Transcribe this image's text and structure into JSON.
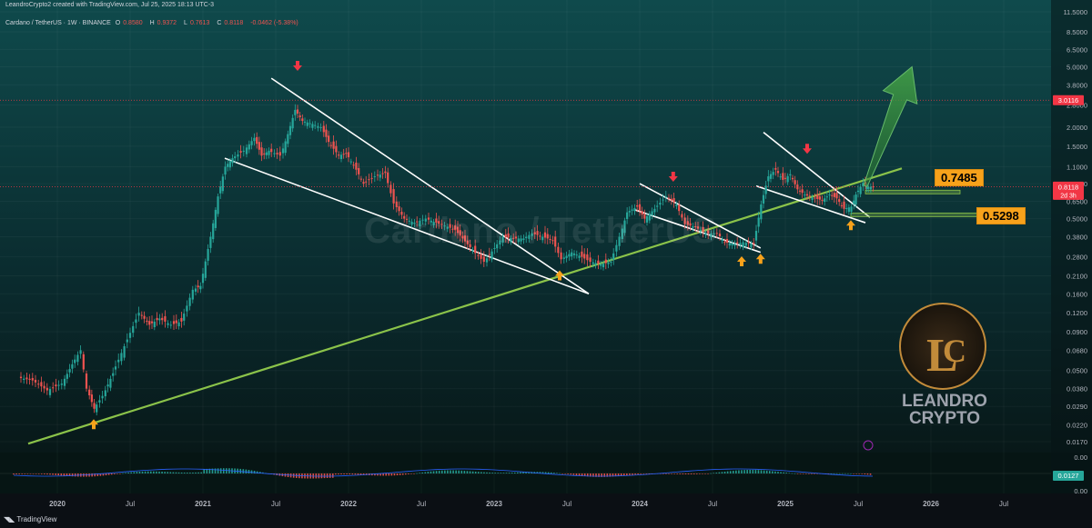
{
  "header": {
    "created": "LeandroCrypto2 created with TradingView.com, Jul 25, 2025 18:13 UTC-3",
    "symbol": "Cardano / TetherUS · 1W · BINANCE",
    "ohlc": {
      "o_label": "O",
      "o": "0.8580",
      "h_label": "H",
      "h": "0.9372",
      "l_label": "L",
      "l": "0.7613",
      "c_label": "C",
      "c": "0.8118",
      "change": "-0.0462 (-5.38%)"
    }
  },
  "watermark": "Cardano / TetherUS",
  "logo": {
    "line1": "LEANDRO",
    "line2": "CRYPTO"
  },
  "footer": {
    "brand": "TradingView"
  },
  "chart_data": {
    "type": "candlestick",
    "symbol": "ADAUSDT",
    "y_scale": "log",
    "price_ticks": [
      "11.5000",
      "8.5000",
      "6.5000",
      "5.0000",
      "3.8000",
      "2.8000",
      "2.0000",
      "1.5000",
      "1.1000",
      "0.8500",
      "0.6500",
      "0.5000",
      "0.3800",
      "0.2800",
      "0.2100",
      "0.1600",
      "0.1200",
      "0.0900",
      "0.0680",
      "0.0500",
      "0.0380",
      "0.0290",
      "0.0220",
      "0.0170"
    ],
    "x_ticks": [
      "2020",
      "Jul",
      "2021",
      "Jul",
      "2022",
      "Jul",
      "2023",
      "Jul",
      "2024",
      "Jul",
      "2025",
      "Jul",
      "2026",
      "Jul"
    ],
    "price_markers": [
      {
        "value": "3.0116",
        "color": "#f23645"
      },
      {
        "value": "0.8118",
        "color": "#f23645",
        "sub": "2d 3h"
      }
    ],
    "levels": [
      {
        "label": "0.7485",
        "value": 0.7485,
        "color": "#f7a21b"
      },
      {
        "label": "0.5298",
        "value": 0.5298,
        "color": "#f7a21b"
      }
    ],
    "trendlines": [
      {
        "name": "long-term support",
        "color": "#8bc34a",
        "from": {
          "t": 2019.8,
          "p": 0.0165
        },
        "to": {
          "t": 2025.8,
          "p": 1.07
        }
      },
      {
        "name": "2021-2023 wedge upper",
        "color": "#ffffff",
        "from": {
          "t": 2021.47,
          "p": 4.2
        },
        "to": {
          "t": 2023.65,
          "p": 0.16
        }
      },
      {
        "name": "2021-2023 wedge lower",
        "color": "#ffffff",
        "from": {
          "t": 2021.15,
          "p": 1.25
        },
        "to": {
          "t": 2023.65,
          "p": 0.16
        }
      },
      {
        "name": "2024 wedge upper",
        "color": "#ffffff",
        "from": {
          "t": 2024.0,
          "p": 0.85
        },
        "to": {
          "t": 2024.83,
          "p": 0.32
        }
      },
      {
        "name": "2024 wedge lower",
        "color": "#ffffff",
        "from": {
          "t": 2023.97,
          "p": 0.57
        },
        "to": {
          "t": 2024.83,
          "p": 0.3
        }
      },
      {
        "name": "2025 wedge upper",
        "color": "#ffffff",
        "from": {
          "t": 2024.85,
          "p": 1.85
        },
        "to": {
          "t": 2025.58,
          "p": 0.51
        }
      },
      {
        "name": "2025 wedge lower",
        "color": "#ffffff",
        "from": {
          "t": 2024.8,
          "p": 0.82
        },
        "to": {
          "t": 2025.55,
          "p": 0.47
        }
      }
    ],
    "arrows_up": [
      2020.25,
      2023.45,
      2024.7,
      2024.83,
      2025.45
    ],
    "arrows_down": [
      2021.65,
      2024.23,
      2025.15
    ],
    "projection": {
      "from": {
        "t": 2025.55,
        "p": 0.82
      },
      "to": {
        "t": 2025.87,
        "p": 5.0
      }
    },
    "candles": [
      [
        2019.75,
        0.045
      ],
      [
        2019.85,
        0.043
      ],
      [
        2019.95,
        0.037
      ],
      [
        2020.05,
        0.041
      ],
      [
        2020.12,
        0.055
      ],
      [
        2020.18,
        0.068
      ],
      [
        2020.22,
        0.038
      ],
      [
        2020.27,
        0.028
      ],
      [
        2020.33,
        0.034
      ],
      [
        2020.4,
        0.048
      ],
      [
        2020.5,
        0.08
      ],
      [
        2020.58,
        0.12
      ],
      [
        2020.65,
        0.1
      ],
      [
        2020.72,
        0.11
      ],
      [
        2020.8,
        0.1
      ],
      [
        2020.87,
        0.105
      ],
      [
        2020.95,
        0.17
      ],
      [
        2021.0,
        0.18
      ],
      [
        2021.07,
        0.38
      ],
      [
        2021.12,
        0.7
      ],
      [
        2021.17,
        1.1
      ],
      [
        2021.22,
        1.25
      ],
      [
        2021.3,
        1.4
      ],
      [
        2021.37,
        1.7
      ],
      [
        2021.42,
        1.3
      ],
      [
        2021.47,
        1.4
      ],
      [
        2021.55,
        1.3
      ],
      [
        2021.6,
        1.8
      ],
      [
        2021.65,
        2.6
      ],
      [
        2021.7,
        2.2
      ],
      [
        2021.77,
        2.1
      ],
      [
        2021.83,
        2.0
      ],
      [
        2021.88,
        1.6
      ],
      [
        2021.95,
        1.3
      ],
      [
        2022.0,
        1.35
      ],
      [
        2022.07,
        1.05
      ],
      [
        2022.12,
        0.85
      ],
      [
        2022.2,
        0.95
      ],
      [
        2022.27,
        1.0
      ],
      [
        2022.33,
        0.63
      ],
      [
        2022.4,
        0.5
      ],
      [
        2022.47,
        0.47
      ],
      [
        2022.55,
        0.5
      ],
      [
        2022.62,
        0.47
      ],
      [
        2022.68,
        0.45
      ],
      [
        2022.75,
        0.42
      ],
      [
        2022.8,
        0.37
      ],
      [
        2022.87,
        0.31
      ],
      [
        2022.95,
        0.26
      ],
      [
        2023.02,
        0.32
      ],
      [
        2023.08,
        0.38
      ],
      [
        2023.15,
        0.37
      ],
      [
        2023.22,
        0.37
      ],
      [
        2023.28,
        0.4
      ],
      [
        2023.35,
        0.38
      ],
      [
        2023.42,
        0.36
      ],
      [
        2023.48,
        0.27
      ],
      [
        2023.55,
        0.3
      ],
      [
        2023.62,
        0.28
      ],
      [
        2023.68,
        0.26
      ],
      [
        2023.75,
        0.25
      ],
      [
        2023.82,
        0.26
      ],
      [
        2023.88,
        0.38
      ],
      [
        2023.93,
        0.55
      ],
      [
        2024.0,
        0.6
      ],
      [
        2024.05,
        0.5
      ],
      [
        2024.12,
        0.58
      ],
      [
        2024.2,
        0.7
      ],
      [
        2024.27,
        0.62
      ],
      [
        2024.33,
        0.46
      ],
      [
        2024.4,
        0.44
      ],
      [
        2024.47,
        0.4
      ],
      [
        2024.55,
        0.4
      ],
      [
        2024.6,
        0.35
      ],
      [
        2024.67,
        0.34
      ],
      [
        2024.73,
        0.35
      ],
      [
        2024.8,
        0.34
      ],
      [
        2024.85,
        0.62
      ],
      [
        2024.9,
        0.95
      ],
      [
        2024.95,
        1.05
      ],
      [
        2025.0,
        0.9
      ],
      [
        2025.05,
        0.98
      ],
      [
        2025.1,
        0.78
      ],
      [
        2025.15,
        0.72
      ],
      [
        2025.22,
        0.68
      ],
      [
        2025.27,
        0.66
      ],
      [
        2025.32,
        0.72
      ],
      [
        2025.37,
        0.68
      ],
      [
        2025.42,
        0.58
      ],
      [
        2025.47,
        0.6
      ],
      [
        2025.5,
        0.72
      ],
      [
        2025.55,
        0.86
      ],
      [
        2025.57,
        0.81
      ]
    ],
    "macd": {
      "value_label": "0.0127",
      "ticks": [
        "0.00",
        "0.00"
      ]
    }
  }
}
